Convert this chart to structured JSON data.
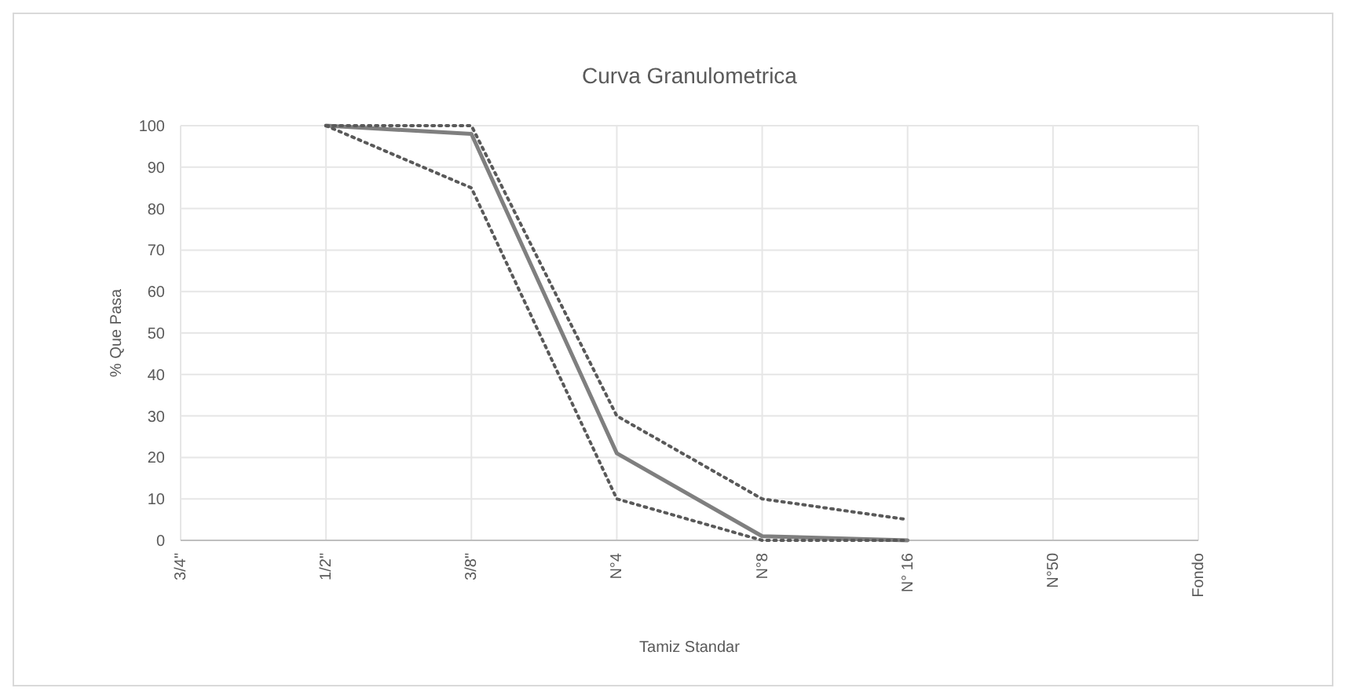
{
  "chart_data": {
    "type": "line",
    "title": "Curva Granulometrica",
    "xlabel": "Tamiz Standar",
    "ylabel": "% Que Pasa",
    "categories": [
      "3/4\"",
      "1/2\"",
      "3/8\"",
      "N°4",
      "N°8",
      "N° 16",
      "N°50",
      "Fondo"
    ],
    "series": [
      {
        "color": "#7f7f7f",
        "line_style": "solid",
        "values": [
          null,
          100,
          98,
          21,
          1,
          0,
          null,
          null
        ]
      },
      {
        "color": "#595959",
        "line_style": "dotted",
        "values": [
          null,
          100,
          100,
          30,
          10,
          5,
          null,
          null
        ]
      },
      {
        "color": "#595959",
        "line_style": "dotted",
        "values": [
          null,
          100,
          85,
          10,
          0,
          0,
          null,
          null
        ]
      }
    ],
    "ylim": [
      0,
      100
    ],
    "yticks": [
      0,
      10,
      20,
      30,
      40,
      50,
      60,
      70,
      80,
      90,
      100
    ],
    "grid": true,
    "marker": "none"
  }
}
